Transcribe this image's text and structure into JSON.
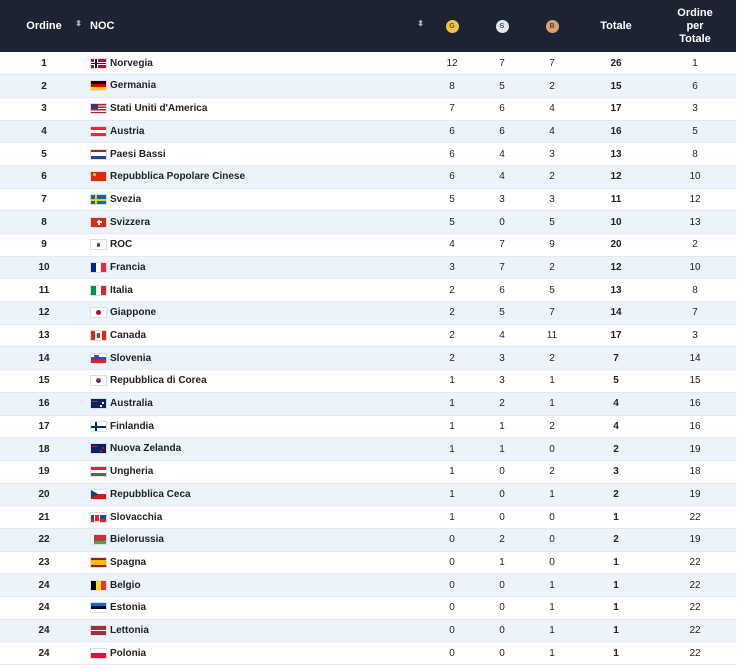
{
  "headers": {
    "rank": "Ordine",
    "noc": "NOC",
    "gold": "G",
    "silver": "S",
    "bronze": "B",
    "total": "Totale",
    "rank_total": "Ordine per Totale"
  },
  "colors": {
    "header_bg": "#1c2333",
    "gold": "#f2c14e",
    "silver": "#e6e6e6",
    "bronze": "#d9a177",
    "row_alt": "#ebf3fb"
  },
  "rows": [
    {
      "rank": "1",
      "noc": "Norvegia",
      "flag": "norway-flag-icon",
      "gold": "12",
      "silver": "7",
      "bronze": "7",
      "total": "26",
      "rank_total": "1"
    },
    {
      "rank": "2",
      "noc": "Germania",
      "flag": "germany-flag-icon",
      "gold": "8",
      "silver": "5",
      "bronze": "2",
      "total": "15",
      "rank_total": "6"
    },
    {
      "rank": "3",
      "noc": "Stati Uniti d'America",
      "flag": "usa-flag-icon",
      "gold": "7",
      "silver": "6",
      "bronze": "4",
      "total": "17",
      "rank_total": "3"
    },
    {
      "rank": "4",
      "noc": "Austria",
      "flag": "austria-flag-icon",
      "gold": "6",
      "silver": "6",
      "bronze": "4",
      "total": "16",
      "rank_total": "5"
    },
    {
      "rank": "5",
      "noc": "Paesi Bassi",
      "flag": "netherlands-flag-icon",
      "gold": "6",
      "silver": "4",
      "bronze": "3",
      "total": "13",
      "rank_total": "8"
    },
    {
      "rank": "6",
      "noc": "Repubblica Popolare Cinese",
      "flag": "china-flag-icon",
      "gold": "6",
      "silver": "4",
      "bronze": "2",
      "total": "12",
      "rank_total": "10"
    },
    {
      "rank": "7",
      "noc": "Svezia",
      "flag": "sweden-flag-icon",
      "gold": "5",
      "silver": "3",
      "bronze": "3",
      "total": "11",
      "rank_total": "12"
    },
    {
      "rank": "8",
      "noc": "Svizzera",
      "flag": "switzerland-flag-icon",
      "gold": "5",
      "silver": "0",
      "bronze": "5",
      "total": "10",
      "rank_total": "13"
    },
    {
      "rank": "9",
      "noc": "ROC",
      "flag": "roc-flag-icon",
      "gold": "4",
      "silver": "7",
      "bronze": "9",
      "total": "20",
      "rank_total": "2"
    },
    {
      "rank": "10",
      "noc": "Francia",
      "flag": "france-flag-icon",
      "gold": "3",
      "silver": "7",
      "bronze": "2",
      "total": "12",
      "rank_total": "10"
    },
    {
      "rank": "11",
      "noc": "Italia",
      "flag": "italy-flag-icon",
      "gold": "2",
      "silver": "6",
      "bronze": "5",
      "total": "13",
      "rank_total": "8"
    },
    {
      "rank": "12",
      "noc": "Giappone",
      "flag": "japan-flag-icon",
      "gold": "2",
      "silver": "5",
      "bronze": "7",
      "total": "14",
      "rank_total": "7"
    },
    {
      "rank": "13",
      "noc": "Canada",
      "flag": "canada-flag-icon",
      "gold": "2",
      "silver": "4",
      "bronze": "11",
      "total": "17",
      "rank_total": "3"
    },
    {
      "rank": "14",
      "noc": "Slovenia",
      "flag": "slovenia-flag-icon",
      "gold": "2",
      "silver": "3",
      "bronze": "2",
      "total": "7",
      "rank_total": "14"
    },
    {
      "rank": "15",
      "noc": "Repubblica di Corea",
      "flag": "korea-flag-icon",
      "gold": "1",
      "silver": "3",
      "bronze": "1",
      "total": "5",
      "rank_total": "15"
    },
    {
      "rank": "16",
      "noc": "Australia",
      "flag": "australia-flag-icon",
      "gold": "1",
      "silver": "2",
      "bronze": "1",
      "total": "4",
      "rank_total": "16"
    },
    {
      "rank": "17",
      "noc": "Finlandia",
      "flag": "finland-flag-icon",
      "gold": "1",
      "silver": "1",
      "bronze": "2",
      "total": "4",
      "rank_total": "16"
    },
    {
      "rank": "18",
      "noc": "Nuova Zelanda",
      "flag": "new-zealand-flag-icon",
      "gold": "1",
      "silver": "1",
      "bronze": "0",
      "total": "2",
      "rank_total": "19"
    },
    {
      "rank": "19",
      "noc": "Ungheria",
      "flag": "hungary-flag-icon",
      "gold": "1",
      "silver": "0",
      "bronze": "2",
      "total": "3",
      "rank_total": "18"
    },
    {
      "rank": "20",
      "noc": "Repubblica Ceca",
      "flag": "czech-flag-icon",
      "gold": "1",
      "silver": "0",
      "bronze": "1",
      "total": "2",
      "rank_total": "19"
    },
    {
      "rank": "21",
      "noc": "Slovacchia",
      "flag": "slovakia-flag-icon",
      "gold": "1",
      "silver": "0",
      "bronze": "0",
      "total": "1",
      "rank_total": "22"
    },
    {
      "rank": "22",
      "noc": "Bielorussia",
      "flag": "belarus-flag-icon",
      "gold": "0",
      "silver": "2",
      "bronze": "0",
      "total": "2",
      "rank_total": "19"
    },
    {
      "rank": "23",
      "noc": "Spagna",
      "flag": "spain-flag-icon",
      "gold": "0",
      "silver": "1",
      "bronze": "0",
      "total": "1",
      "rank_total": "22"
    },
    {
      "rank": "24",
      "noc": "Belgio",
      "flag": "belgium-flag-icon",
      "gold": "0",
      "silver": "0",
      "bronze": "1",
      "total": "1",
      "rank_total": "22"
    },
    {
      "rank": "24",
      "noc": "Estonia",
      "flag": "estonia-flag-icon",
      "gold": "0",
      "silver": "0",
      "bronze": "1",
      "total": "1",
      "rank_total": "22"
    },
    {
      "rank": "24",
      "noc": "Lettonia",
      "flag": "latvia-flag-icon",
      "gold": "0",
      "silver": "0",
      "bronze": "1",
      "total": "1",
      "rank_total": "22"
    },
    {
      "rank": "24",
      "noc": "Polonia",
      "flag": "poland-flag-icon",
      "gold": "0",
      "silver": "0",
      "bronze": "1",
      "total": "1",
      "rank_total": "22"
    }
  ]
}
